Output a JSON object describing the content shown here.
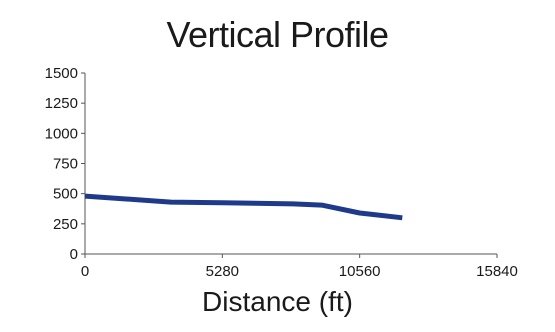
{
  "chart_data": {
    "type": "line",
    "title": "Vertical Profile",
    "xlabel": "Distance (ft)",
    "ylabel": "",
    "xlim": [
      0,
      15840
    ],
    "ylim": [
      0,
      1500
    ],
    "xticks": [
      0,
      5280,
      10560,
      15840
    ],
    "yticks": [
      0,
      250,
      500,
      750,
      1000,
      1250,
      1500
    ],
    "grid": false,
    "series": [
      {
        "color": "#1f3a8a",
        "x": [
          0,
          3300,
          5280,
          8000,
          9100,
          10560,
          12200
        ],
        "y": [
          480,
          430,
          425,
          415,
          405,
          340,
          300
        ]
      }
    ]
  }
}
